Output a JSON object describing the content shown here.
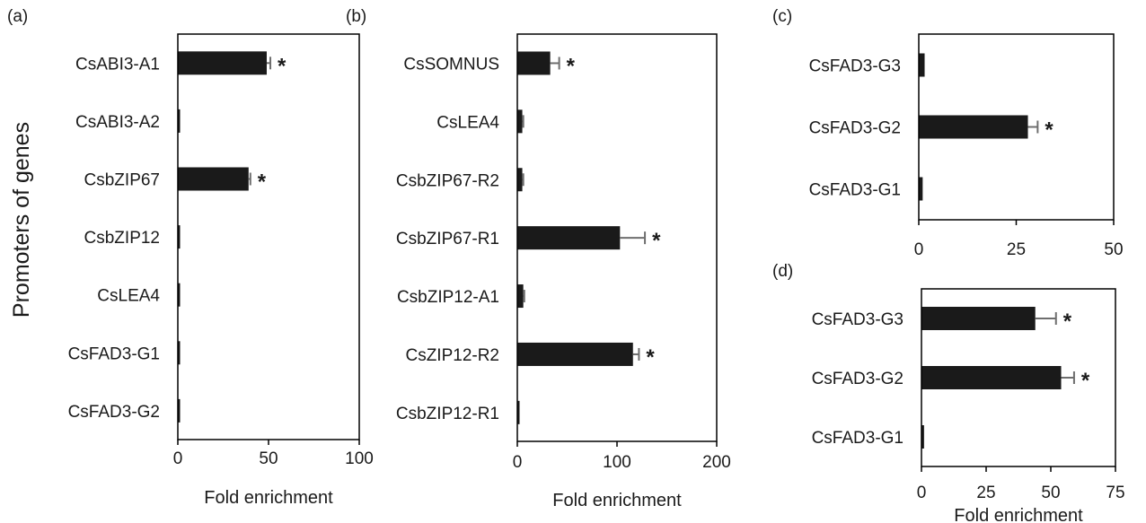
{
  "figure": {
    "ylabel": "Promoters of genes",
    "colors": {
      "bar": "#1a1a1a",
      "error": "#6e6e6e",
      "frame": "#000000"
    }
  },
  "chart_data": [
    {
      "panel": "(a)",
      "type": "bar",
      "orientation": "horizontal",
      "xlabel": "Fold enrichment",
      "xlim": [
        0,
        100
      ],
      "xticks": [
        0,
        50,
        100
      ],
      "categories": [
        "CsABI3-A1",
        "CsABI3-A2",
        "CsbZIP67",
        "CsbZIP12",
        "CsLEA4",
        "CsFAD3-G1",
        "CsFAD3-G2"
      ],
      "values": [
        49,
        1,
        39,
        0.5,
        0.5,
        0.5,
        0.5
      ],
      "errors": [
        2,
        0,
        1,
        0,
        0,
        0,
        0
      ],
      "significant": [
        true,
        false,
        true,
        false,
        false,
        false,
        false
      ],
      "sig_label": "*"
    },
    {
      "panel": "(b)",
      "type": "bar",
      "orientation": "horizontal",
      "xlabel": "Fold enrichment",
      "xlim": [
        0,
        200
      ],
      "xticks": [
        0,
        100,
        200
      ],
      "categories": [
        "CsSOMNUS",
        "CsLEA4",
        "CsbZIP67-R2",
        "CsbZIP67-R1",
        "CsbZIP12-A1",
        "CsZIP12-R2",
        "CsbZIP12-R1"
      ],
      "values": [
        33,
        5,
        5,
        103,
        6,
        116,
        2
      ],
      "errors": [
        9,
        1,
        1,
        25,
        1,
        6,
        0
      ],
      "significant": [
        true,
        false,
        false,
        true,
        false,
        true,
        false
      ],
      "sig_label": "*"
    },
    {
      "panel": "(c)",
      "type": "bar",
      "orientation": "horizontal",
      "xlabel": "",
      "xlim": [
        0,
        50
      ],
      "xticks": [
        0,
        25,
        50
      ],
      "categories": [
        "CsFAD3-G3",
        "CsFAD3-G2",
        "CsFAD3-G1"
      ],
      "values": [
        1.5,
        28,
        1
      ],
      "errors": [
        0,
        2.5,
        0
      ],
      "significant": [
        false,
        true,
        false
      ],
      "sig_label": "*"
    },
    {
      "panel": "(d)",
      "type": "bar",
      "orientation": "horizontal",
      "xlabel": "Fold enrichment",
      "xlim": [
        0,
        75
      ],
      "xticks": [
        0,
        25,
        50,
        75
      ],
      "categories": [
        "CsFAD3-G3",
        "CsFAD3-G2",
        "CsFAD3-G1"
      ],
      "values": [
        44,
        54,
        1
      ],
      "errors": [
        8,
        5,
        0
      ],
      "significant": [
        true,
        true,
        false
      ],
      "sig_label": "*"
    }
  ]
}
